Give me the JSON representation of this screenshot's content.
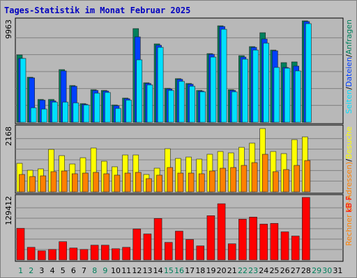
{
  "title": "Tages-Statistik im Monat Februar 2025",
  "chart_data": [
    {
      "type": "bar",
      "ylim": [
        0,
        9963
      ],
      "yticks": [
        9963
      ],
      "label_separator": "/",
      "series": [
        {
          "name": "Anfragen",
          "color": "#00805c",
          "values": [
            6620,
            4430,
            2250,
            2250,
            5180,
            3615,
            1840,
            3205,
            3135,
            1705,
            2385,
            9205,
            3885,
            7705,
            3340,
            4295,
            3820,
            3135,
            6750,
            9480,
            3205,
            6545,
            7435,
            8800,
            7095,
            5865,
            5935,
            9963,
            null,
            null,
            null
          ]
        },
        {
          "name": "Dateien",
          "color": "#0040ff",
          "values": [
            6275,
            4365,
            2180,
            2115,
            5050,
            3545,
            1775,
            3135,
            3070,
            1635,
            2320,
            8390,
            3820,
            7570,
            3275,
            4230,
            3750,
            3070,
            6685,
            9410,
            3135,
            6410,
            7365,
            8185,
            7025,
            5390,
            5525,
            9895,
            null,
            null,
            null
          ]
        },
        {
          "name": "Seiten",
          "color": "#00e0ff",
          "values": [
            6275,
            1430,
            1300,
            1980,
            1980,
            1910,
            1705,
            2865,
            2935,
            1365,
            2180,
            6140,
            3680,
            7365,
            3135,
            4025,
            3545,
            3000,
            6410,
            9140,
            3000,
            6205,
            7095,
            7775,
            5390,
            5320,
            5050,
            9690,
            null,
            null,
            null
          ]
        }
      ]
    },
    {
      "type": "bar",
      "ylim": [
        0,
        2168
      ],
      "yticks": [
        2168
      ],
      "label_separator": "/",
      "series": [
        {
          "name": "Besuche",
          "color": "#ffff00",
          "values": [
            966,
            731,
            778,
            1438,
            1226,
            943,
            1155,
            1485,
            1037,
            849,
            1249,
            1249,
            589,
            801,
            1461,
            1131,
            1178,
            1108,
            1273,
            1367,
            1320,
            1508,
            1650,
            2145,
            1367,
            1296,
            1768,
            1862,
            null,
            null,
            null
          ]
        },
        {
          "name": "Rechner (IP-Adressen)",
          "color": "#ff8000",
          "values": [
            589,
            519,
            542,
            684,
            707,
            613,
            636,
            660,
            613,
            566,
            636,
            660,
            448,
            566,
            825,
            636,
            636,
            613,
            707,
            801,
            825,
            896,
            990,
            1273,
            684,
            754,
            896,
            1061,
            null,
            null,
            null
          ]
        }
      ]
    },
    {
      "type": "bar",
      "ylim": [
        0,
        129412
      ],
      "yticks": [
        129412
      ],
      "categories": [
        "1",
        "2",
        "3",
        "4",
        "5",
        "6",
        "7",
        "8",
        "9",
        "10",
        "11",
        "12",
        "13",
        "14",
        "15",
        "16",
        "17",
        "18",
        "19",
        "20",
        "21",
        "22",
        "23",
        "24",
        "25",
        "26",
        "27",
        "28",
        "29",
        "30",
        "31"
      ],
      "highlight_categories": [
        0,
        1,
        7,
        8,
        14,
        15,
        21,
        22,
        28,
        29
      ],
      "highlight_color": "#00805c",
      "series": [
        {
          "name": "kB F",
          "color": "#ff0000",
          "values": [
            65430,
            26170,
            18900,
            21810,
            37800,
            24720,
            21810,
            30530,
            30530,
            23260,
            26170,
            63980,
            53800,
            85790,
            36350,
            59610,
            42170,
            29080,
            91600,
            116320,
            33440,
            84330,
            88690,
            74150,
            75610,
            58160,
            49440,
            129412,
            null,
            null,
            null
          ]
        }
      ]
    }
  ]
}
